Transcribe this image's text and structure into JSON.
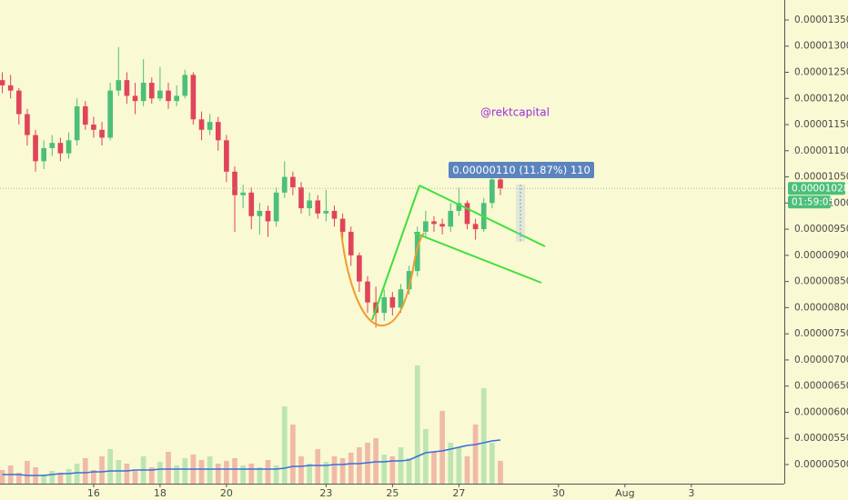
{
  "chart_data": {
    "type": "candlestick",
    "annotation": "@rektcapital",
    "measure_label": "0.00000110 (11.87%) 110",
    "countdown": "01:59:05",
    "last_price": {
      "value": 1.028e-05,
      "label": "0.00001028"
    },
    "up_color": "#4cbf7a",
    "down_color": "#e0445a",
    "volume_ma_color": "#3a6fd8",
    "xlim": [
      13.18,
      36.8
    ],
    "xticks": [
      16,
      18,
      20,
      23,
      25,
      27,
      30,
      {
        "value": 32,
        "label": "Aug"
      },
      {
        "value": 34,
        "label": "3"
      }
    ],
    "ylim": [
      4.635e-06,
      1.3882e-05
    ],
    "yticks": [
      {
        "value": 5e-06,
        "label": "0.00000500"
      },
      {
        "value": 5.5e-06,
        "label": "0.00000550"
      },
      {
        "value": 6e-06,
        "label": "0.00000600"
      },
      {
        "value": 6.5e-06,
        "label": "0.00000650"
      },
      {
        "value": 7e-06,
        "label": "0.00000700"
      },
      {
        "value": 7.5e-06,
        "label": "0.00000750"
      },
      {
        "value": 8e-06,
        "label": "0.00000800"
      },
      {
        "value": 8.5e-06,
        "label": "0.00000850"
      },
      {
        "value": 9e-06,
        "label": "0.00000900"
      },
      {
        "value": 9.5e-06,
        "label": "0.00000950"
      },
      {
        "value": 1e-05,
        "label": "0.00001000"
      },
      {
        "value": 1.05e-05,
        "label": "0.00001050"
      },
      {
        "value": 1.1e-05,
        "label": "0.00001100"
      },
      {
        "value": 1.15e-05,
        "label": "0.00001150"
      },
      {
        "value": 1.2e-05,
        "label": "0.00001200"
      },
      {
        "value": 1.25e-05,
        "label": "0.00001250"
      },
      {
        "value": 1.3e-05,
        "label": "0.00001300"
      },
      {
        "value": 1.35e-05,
        "label": "0.00001350"
      }
    ],
    "x": [
      13.25,
      13.5,
      13.75,
      14,
      14.25,
      14.5,
      14.75,
      15,
      15.25,
      15.5,
      15.75,
      16,
      16.25,
      16.5,
      16.75,
      17,
      17.25,
      17.5,
      17.75,
      18,
      18.25,
      18.5,
      18.75,
      19,
      19.25,
      19.5,
      19.75,
      20,
      20.25,
      20.5,
      20.75,
      21,
      21.25,
      21.5,
      21.75,
      22,
      22.25,
      22.5,
      22.75,
      23,
      23.25,
      23.5,
      23.75,
      24,
      24.25,
      24.5,
      24.75,
      25,
      25.25,
      25.5,
      25.75,
      26,
      26.25,
      26.5,
      26.75,
      27,
      27.25,
      27.5,
      27.75,
      28,
      28.25
    ],
    "open": [
      1.235e-05,
      1.225e-05,
      1.215e-05,
      1.17e-05,
      1.13e-05,
      1.08e-05,
      1.105e-05,
      1.115e-05,
      1.095e-05,
      1.12e-05,
      1.185e-05,
      1.15e-05,
      1.14e-05,
      1.125e-05,
      1.215e-05,
      1.235e-05,
      1.205e-05,
      1.195e-05,
      1.23e-05,
      1.2e-05,
      1.215e-05,
      1.195e-05,
      1.205e-05,
      1.245e-05,
      1.16e-05,
      1.14e-05,
      1.155e-05,
      1.12e-05,
      1.06e-05,
      1.015e-05,
      1.02e-05,
      9.75e-06,
      9.85e-06,
      9.65e-06,
      1.02e-05,
      1.05e-05,
      1.03e-05,
      9.9e-06,
      1.005e-05,
      9.8e-06,
      9.85e-06,
      9.7e-06,
      9.45e-06,
      9e-06,
      8.5e-06,
      8.1e-06,
      7.9e-06,
      8.2e-06,
      8e-06,
      8.35e-06,
      8.7e-06,
      9.45e-06,
      9.65e-06,
      9.6e-06,
      9.55e-06,
      9.85e-06,
      1e-05,
      9.6e-06,
      9.5e-06,
      1e-05,
      1.045e-05
    ],
    "high": [
      1.25e-05,
      1.245e-05,
      1.22e-05,
      1.18e-05,
      1.14e-05,
      1.12e-05,
      1.13e-05,
      1.125e-05,
      1.135e-05,
      1.2e-05,
      1.195e-05,
      1.165e-05,
      1.155e-05,
      1.23e-05,
      1.298e-05,
      1.25e-05,
      1.23e-05,
      1.275e-05,
      1.24e-05,
      1.26e-05,
      1.23e-05,
      1.225e-05,
      1.255e-05,
      1.25e-05,
      1.175e-05,
      1.17e-05,
      1.165e-05,
      1.13e-05,
      1.07e-05,
      1.035e-05,
      1.03e-05,
      1e-05,
      9.95e-06,
      1.03e-05,
      1.08e-05,
      1.06e-05,
      1.04e-05,
      1.02e-05,
      1.015e-05,
      1.025e-05,
      9.95e-06,
      9.8e-06,
      9.55e-06,
      9.05e-06,
      8.6e-06,
      8.4e-06,
      8.35e-06,
      8.3e-06,
      8.45e-06,
      8.8e-06,
      9.55e-06,
      9.85e-06,
      9.75e-06,
      9.7e-06,
      1e-05,
      1.03e-05,
      1.005e-05,
      9.7e-06,
      1.01e-05,
      1.05e-05,
      1.05e-05
    ],
    "low": [
      1.21e-05,
      1.2e-05,
      1.15e-05,
      1.11e-05,
      1.06e-05,
      1.065e-05,
      1.09e-05,
      1.08e-05,
      1.085e-05,
      1.11e-05,
      1.14e-05,
      1.125e-05,
      1.11e-05,
      1.12e-05,
      1.205e-05,
      1.19e-05,
      1.17e-05,
      1.185e-05,
      1.19e-05,
      1.195e-05,
      1.18e-05,
      1.185e-05,
      1.2e-05,
      1.15e-05,
      1.12e-05,
      1.13e-05,
      1.1e-05,
      1.04e-05,
      9.45e-06,
      9.9e-06,
      9.5e-06,
      9.4e-06,
      9.35e-06,
      9.55e-06,
      1.01e-05,
      1.015e-05,
      9.8e-06,
      9.75e-06,
      9.7e-06,
      9.65e-06,
      9.55e-06,
      9.3e-06,
      8.8e-06,
      8.3e-06,
      7.9e-06,
      7.62e-06,
      7.75e-06,
      7.85e-06,
      7.9e-06,
      8.25e-06,
      8.6e-06,
      9.35e-06,
      9.45e-06,
      9.4e-06,
      9.45e-06,
      9.75e-06,
      9.5e-06,
      9.3e-06,
      9.45e-06,
      9.9e-06,
      1.015e-05
    ],
    "close": [
      1.225e-05,
      1.215e-05,
      1.17e-05,
      1.13e-05,
      1.08e-05,
      1.105e-05,
      1.115e-05,
      1.095e-05,
      1.12e-05,
      1.185e-05,
      1.15e-05,
      1.14e-05,
      1.125e-05,
      1.215e-05,
      1.235e-05,
      1.205e-05,
      1.195e-05,
      1.23e-05,
      1.2e-05,
      1.215e-05,
      1.195e-05,
      1.205e-05,
      1.245e-05,
      1.16e-05,
      1.14e-05,
      1.155e-05,
      1.12e-05,
      1.06e-05,
      1.015e-05,
      1.02e-05,
      9.75e-06,
      9.85e-06,
      9.65e-06,
      1.02e-05,
      1.05e-05,
      1.03e-05,
      9.9e-06,
      1.005e-05,
      9.8e-06,
      9.85e-06,
      9.7e-06,
      9.45e-06,
      9e-06,
      8.5e-06,
      8.1e-06,
      7.9e-06,
      8.2e-06,
      8e-06,
      8.35e-06,
      8.7e-06,
      9.45e-06,
      9.65e-06,
      9.6e-06,
      9.55e-06,
      9.85e-06,
      1e-05,
      9.6e-06,
      9.5e-06,
      1e-05,
      1.045e-05,
      1.028e-05
    ],
    "volume": [
      15,
      20,
      12,
      25,
      18,
      10,
      14,
      12,
      16,
      22,
      28,
      15,
      30,
      38,
      26,
      22,
      14,
      30,
      18,
      24,
      35,
      20,
      28,
      32,
      26,
      30,
      22,
      25,
      28,
      20,
      22,
      18,
      26,
      20,
      85,
      65,
      30,
      22,
      38,
      24,
      30,
      28,
      34,
      40,
      45,
      50,
      32,
      30,
      40,
      28,
      130,
      60,
      35,
      80,
      45,
      40,
      30,
      65,
      105,
      45,
      25
    ],
    "volume_ma": [
      10,
      10,
      10,
      9,
      9,
      9,
      10,
      11,
      11,
      12,
      12,
      13,
      13,
      14,
      14,
      14,
      15,
      15,
      15,
      16,
      16,
      16,
      16,
      16,
      16,
      16,
      16,
      16,
      16,
      16,
      16,
      16,
      16,
      16,
      17,
      19,
      19,
      20,
      20,
      20,
      21,
      21,
      22,
      22,
      23,
      24,
      24,
      25,
      25,
      26,
      30,
      34,
      35,
      36,
      38,
      40,
      42,
      43,
      45,
      47,
      48
    ]
  }
}
